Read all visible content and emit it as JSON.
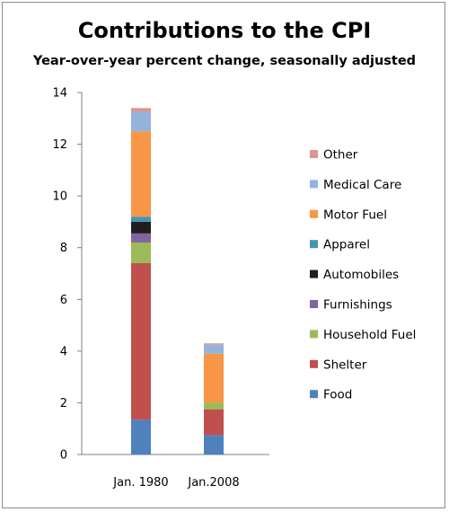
{
  "chart_data": {
    "type": "bar",
    "stacked": true,
    "title": "Contributions to the CPI",
    "subtitle": "Year-over-year percent change, seasonally adjusted",
    "xlabel": "",
    "ylabel": "",
    "categories": [
      "Jan. 1980",
      "Jan.2008"
    ],
    "ylim": [
      0,
      14
    ],
    "yticks": [
      0,
      2,
      4,
      6,
      8,
      10,
      12,
      14
    ],
    "grid": false,
    "legend_position": "right",
    "series": [
      {
        "name": "Food",
        "color": "#4f81bd",
        "values": [
          1.35,
          0.75
        ]
      },
      {
        "name": "Shelter",
        "color": "#c0504d",
        "values": [
          6.05,
          1.0
        ]
      },
      {
        "name": "Household Fuel",
        "color": "#9bbb59",
        "values": [
          0.8,
          0.25
        ]
      },
      {
        "name": "Furnishings",
        "color": "#8064a2",
        "values": [
          0.35,
          0.0
        ]
      },
      {
        "name": "Automobiles",
        "color": "#1f1f1f",
        "values": [
          0.45,
          0.0
        ]
      },
      {
        "name": "Apparel",
        "color": "#4198af",
        "values": [
          0.2,
          0.0
        ]
      },
      {
        "name": "Motor Fuel",
        "color": "#f79646",
        "values": [
          3.3,
          1.9
        ]
      },
      {
        "name": "Medical Care",
        "color": "#93b3db",
        "values": [
          0.75,
          0.35
        ]
      },
      {
        "name": "Other",
        "color": "#d99694",
        "values": [
          0.15,
          0.05
        ]
      }
    ]
  }
}
